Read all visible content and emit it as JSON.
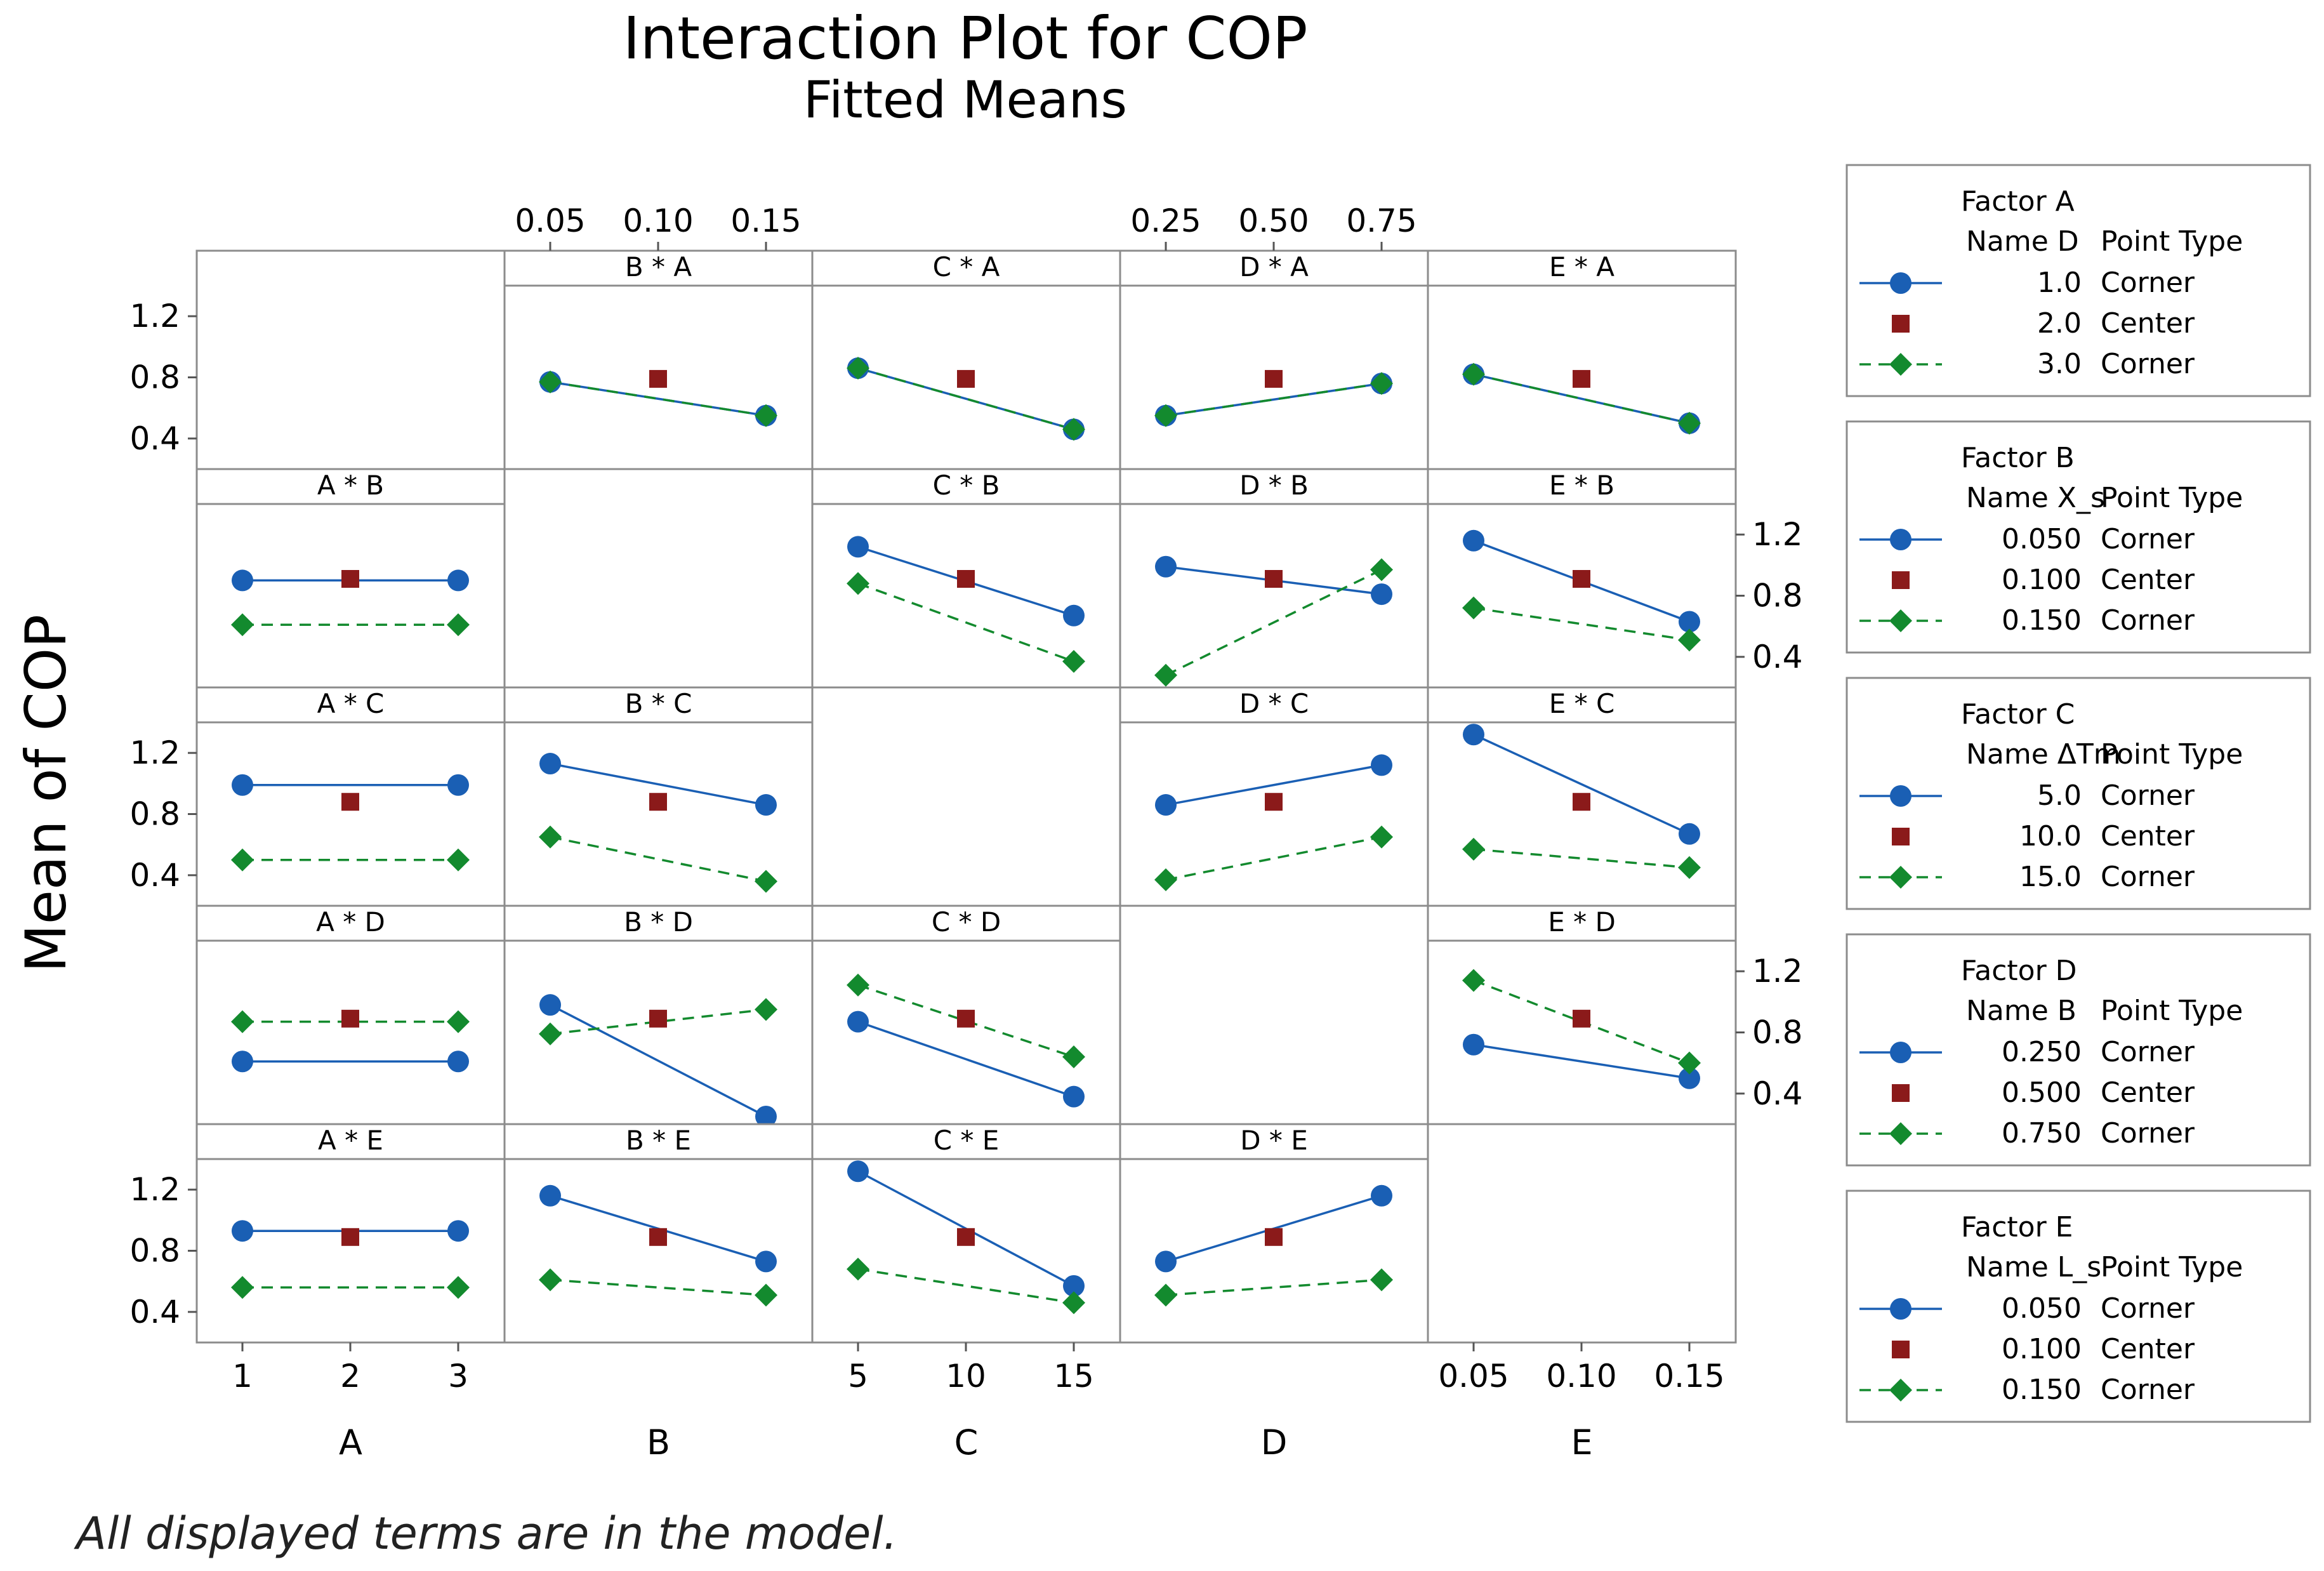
{
  "chart_data": {
    "type": "line",
    "title": "Interaction Plot for COP",
    "subtitle": "Fitted Means",
    "ylabel": "Mean of COP",
    "footnote": "All displayed terms are in the model.",
    "ylim": [
      0.2,
      1.4
    ],
    "y_ticks": [
      "0.4",
      "0.8",
      "1.2"
    ],
    "factors": [
      {
        "key": "A",
        "label": "A",
        "levels": [
          1,
          2,
          3
        ],
        "tick_labels": [
          "1",
          "2",
          "3"
        ]
      },
      {
        "key": "B",
        "label": "B",
        "levels": [
          0.05,
          0.1,
          0.15
        ],
        "tick_labels": [
          "0.05",
          "0.10",
          "0.15"
        ]
      },
      {
        "key": "C",
        "label": "C",
        "levels": [
          5,
          10,
          15
        ],
        "tick_labels": [
          "5",
          "10",
          "15"
        ]
      },
      {
        "key": "D",
        "label": "D",
        "levels": [
          0.25,
          0.5,
          0.75
        ],
        "tick_labels": [
          "0.25",
          "0.50",
          "0.75"
        ]
      },
      {
        "key": "E",
        "label": "E",
        "levels": [
          0.05,
          0.1,
          0.15
        ],
        "tick_labels": [
          "0.05",
          "0.10",
          "0.15"
        ]
      }
    ],
    "point_types": [
      "Corner",
      "Center",
      "Corner"
    ],
    "series_colors": {
      "low": "#1a5fb4",
      "center": "#8b1a1a",
      "high": "#138a2e"
    },
    "panels": [
      {
        "label": "B * A",
        "row": 0,
        "col": 1,
        "series": [
          {
            "level": "low",
            "values": [
              0.77,
              null,
              0.55
            ]
          },
          {
            "level": "center",
            "values": [
              null,
              0.79,
              null
            ]
          },
          {
            "level": "high",
            "values": [
              0.77,
              null,
              0.55
            ]
          }
        ]
      },
      {
        "label": "C * A",
        "row": 0,
        "col": 2,
        "series": [
          {
            "level": "low",
            "values": [
              0.86,
              null,
              0.46
            ]
          },
          {
            "level": "center",
            "values": [
              null,
              0.79,
              null
            ]
          },
          {
            "level": "high",
            "values": [
              0.86,
              null,
              0.46
            ]
          }
        ]
      },
      {
        "label": "D * A",
        "row": 0,
        "col": 3,
        "series": [
          {
            "level": "low",
            "values": [
              0.55,
              null,
              0.76
            ]
          },
          {
            "level": "center",
            "values": [
              null,
              0.79,
              null
            ]
          },
          {
            "level": "high",
            "values": [
              0.55,
              null,
              0.76
            ]
          }
        ]
      },
      {
        "label": "E * A",
        "row": 0,
        "col": 4,
        "series": [
          {
            "level": "low",
            "values": [
              0.82,
              null,
              0.5
            ]
          },
          {
            "level": "center",
            "values": [
              null,
              0.79,
              null
            ]
          },
          {
            "level": "high",
            "values": [
              0.82,
              null,
              0.5
            ]
          }
        ]
      },
      {
        "label": "A * B",
        "row": 1,
        "col": 0,
        "series": [
          {
            "level": "low",
            "values": [
              0.9,
              null,
              0.9
            ]
          },
          {
            "level": "center",
            "values": [
              null,
              0.91,
              null
            ]
          },
          {
            "level": "high",
            "values": [
              0.61,
              null,
              0.61
            ]
          }
        ]
      },
      {
        "label": "C * B",
        "row": 1,
        "col": 2,
        "series": [
          {
            "level": "low",
            "values": [
              1.12,
              null,
              0.67
            ]
          },
          {
            "level": "center",
            "values": [
              null,
              0.91,
              null
            ]
          },
          {
            "level": "high",
            "values": [
              0.88,
              null,
              0.37
            ]
          }
        ]
      },
      {
        "label": "D * B",
        "row": 1,
        "col": 3,
        "series": [
          {
            "level": "low",
            "values": [
              0.99,
              null,
              0.81
            ]
          },
          {
            "level": "center",
            "values": [
              null,
              0.91,
              null
            ]
          },
          {
            "level": "high",
            "values": [
              0.28,
              null,
              0.97
            ]
          }
        ]
      },
      {
        "label": "E * B",
        "row": 1,
        "col": 4,
        "series": [
          {
            "level": "low",
            "values": [
              1.16,
              null,
              0.63
            ]
          },
          {
            "level": "center",
            "values": [
              null,
              0.91,
              null
            ]
          },
          {
            "level": "high",
            "values": [
              0.72,
              null,
              0.51
            ]
          }
        ]
      },
      {
        "label": "A * C",
        "row": 2,
        "col": 0,
        "series": [
          {
            "level": "low",
            "values": [
              0.99,
              null,
              0.99
            ]
          },
          {
            "level": "center",
            "values": [
              null,
              0.88,
              null
            ]
          },
          {
            "level": "high",
            "values": [
              0.5,
              null,
              0.5
            ]
          }
        ]
      },
      {
        "label": "B * C",
        "row": 2,
        "col": 1,
        "series": [
          {
            "level": "low",
            "values": [
              1.13,
              null,
              0.86
            ]
          },
          {
            "level": "center",
            "values": [
              null,
              0.88,
              null
            ]
          },
          {
            "level": "high",
            "values": [
              0.65,
              null,
              0.36
            ]
          }
        ]
      },
      {
        "label": "D * C",
        "row": 2,
        "col": 3,
        "series": [
          {
            "level": "low",
            "values": [
              0.86,
              null,
              1.12
            ]
          },
          {
            "level": "center",
            "values": [
              null,
              0.88,
              null
            ]
          },
          {
            "level": "high",
            "values": [
              0.37,
              null,
              0.65
            ]
          }
        ]
      },
      {
        "label": "E * C",
        "row": 2,
        "col": 4,
        "series": [
          {
            "level": "low",
            "values": [
              1.32,
              null,
              0.67
            ]
          },
          {
            "level": "center",
            "values": [
              null,
              0.88,
              null
            ]
          },
          {
            "level": "high",
            "values": [
              0.57,
              null,
              0.45
            ]
          }
        ]
      },
      {
        "label": "A * D",
        "row": 3,
        "col": 0,
        "series": [
          {
            "level": "low",
            "values": [
              0.61,
              null,
              0.61
            ]
          },
          {
            "level": "center",
            "values": [
              null,
              0.89,
              null
            ]
          },
          {
            "level": "high",
            "values": [
              0.87,
              null,
              0.87
            ]
          }
        ]
      },
      {
        "label": "B * D",
        "row": 3,
        "col": 1,
        "series": [
          {
            "level": "low",
            "values": [
              0.98,
              null,
              0.25
            ]
          },
          {
            "level": "center",
            "values": [
              null,
              0.89,
              null
            ]
          },
          {
            "level": "high",
            "values": [
              0.79,
              null,
              0.95
            ]
          }
        ]
      },
      {
        "label": "C * D",
        "row": 3,
        "col": 2,
        "series": [
          {
            "level": "low",
            "values": [
              0.87,
              null,
              0.38
            ]
          },
          {
            "level": "center",
            "values": [
              null,
              0.89,
              null
            ]
          },
          {
            "level": "high",
            "values": [
              1.11,
              null,
              0.64
            ]
          }
        ]
      },
      {
        "label": "E * D",
        "row": 3,
        "col": 4,
        "series": [
          {
            "level": "low",
            "values": [
              0.72,
              null,
              0.5
            ]
          },
          {
            "level": "center",
            "values": [
              null,
              0.89,
              null
            ]
          },
          {
            "level": "high",
            "values": [
              1.14,
              null,
              0.6
            ]
          }
        ]
      },
      {
        "label": "A * E",
        "row": 4,
        "col": 0,
        "series": [
          {
            "level": "low",
            "values": [
              0.93,
              null,
              0.93
            ]
          },
          {
            "level": "center",
            "values": [
              null,
              0.89,
              null
            ]
          },
          {
            "level": "high",
            "values": [
              0.56,
              null,
              0.56
            ]
          }
        ]
      },
      {
        "label": "B * E",
        "row": 4,
        "col": 1,
        "series": [
          {
            "level": "low",
            "values": [
              1.16,
              null,
              0.73
            ]
          },
          {
            "level": "center",
            "values": [
              null,
              0.89,
              null
            ]
          },
          {
            "level": "high",
            "values": [
              0.61,
              null,
              0.51
            ]
          }
        ]
      },
      {
        "label": "C * E",
        "row": 4,
        "col": 2,
        "series": [
          {
            "level": "low",
            "values": [
              1.32,
              null,
              0.57
            ]
          },
          {
            "level": "center",
            "values": [
              null,
              0.89,
              null
            ]
          },
          {
            "level": "high",
            "values": [
              0.68,
              null,
              0.46
            ]
          }
        ]
      },
      {
        "label": "D * E",
        "row": 4,
        "col": 3,
        "series": [
          {
            "level": "low",
            "values": [
              0.73,
              null,
              1.16
            ]
          },
          {
            "level": "center",
            "values": [
              null,
              0.89,
              null
            ]
          },
          {
            "level": "high",
            "values": [
              0.51,
              null,
              0.61
            ]
          }
        ]
      }
    ],
    "legends": [
      {
        "title": "Factor A",
        "name_label": "Name D",
        "point_type_label": "Point Type",
        "rows": [
          {
            "value": "1.0",
            "type": "Corner"
          },
          {
            "value": "2.0",
            "type": "Center"
          },
          {
            "value": "3.0",
            "type": "Corner"
          }
        ]
      },
      {
        "title": "Factor B",
        "name_label": "Name X_s",
        "point_type_label": "Point Type",
        "rows": [
          {
            "value": "0.050",
            "type": "Corner"
          },
          {
            "value": "0.100",
            "type": "Center"
          },
          {
            "value": "0.150",
            "type": "Corner"
          }
        ]
      },
      {
        "title": "Factor C",
        "name_label": "Name ΔTm",
        "point_type_label": "Point Type",
        "rows": [
          {
            "value": "5.0",
            "type": "Corner"
          },
          {
            "value": "10.0",
            "type": "Center"
          },
          {
            "value": "15.0",
            "type": "Corner"
          }
        ]
      },
      {
        "title": "Factor D",
        "name_label": "Name B",
        "point_type_label": "Point Type",
        "rows": [
          {
            "value": "0.250",
            "type": "Corner"
          },
          {
            "value": "0.500",
            "type": "Center"
          },
          {
            "value": "0.750",
            "type": "Corner"
          }
        ]
      },
      {
        "title": "Factor E",
        "name_label": "Name L_s",
        "point_type_label": "Point Type",
        "rows": [
          {
            "value": "0.050",
            "type": "Corner"
          },
          {
            "value": "0.100",
            "type": "Center"
          },
          {
            "value": "0.150",
            "type": "Corner"
          }
        ]
      }
    ]
  }
}
